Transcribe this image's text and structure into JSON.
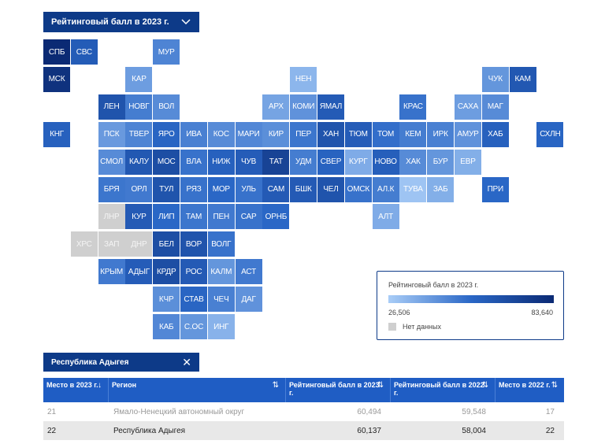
{
  "selector": {
    "label": "Рейтинговый балл в 2023 г.",
    "icon": "chevron-down-icon"
  },
  "map": {
    "tiles": [
      {
        "id": "СПБ",
        "col": 0,
        "row": 0,
        "value": 83.6
      },
      {
        "id": "СВС",
        "col": 1,
        "row": 0,
        "value": 60.2
      },
      {
        "id": "МУР",
        "col": 4,
        "row": 0,
        "value": 47.0
      },
      {
        "id": "МСК",
        "col": 0,
        "row": 1,
        "value": 80.0
      },
      {
        "id": "КАР",
        "col": 3,
        "row": 1,
        "value": 40.0
      },
      {
        "id": "НЕН",
        "col": 9,
        "row": 1,
        "value": 33.0
      },
      {
        "id": "ЧУК",
        "col": 16,
        "row": 1,
        "value": 42.0
      },
      {
        "id": "КАМ",
        "col": 17,
        "row": 1,
        "value": 62.0
      },
      {
        "id": "ЛЕН",
        "col": 2,
        "row": 2,
        "value": 64.0
      },
      {
        "id": "НОВГ",
        "col": 3,
        "row": 2,
        "value": 49.0
      },
      {
        "id": "ВОЛ",
        "col": 4,
        "row": 2,
        "value": 45.0
      },
      {
        "id": "АРХ",
        "col": 8,
        "row": 2,
        "value": 38.0
      },
      {
        "id": "КОМИ",
        "col": 9,
        "row": 2,
        "value": 43.0
      },
      {
        "id": "ЯМАЛ",
        "col": 10,
        "row": 2,
        "value": 60.5
      },
      {
        "id": "КРАС",
        "col": 13,
        "row": 2,
        "value": 52.0
      },
      {
        "id": "САХА",
        "col": 15,
        "row": 2,
        "value": 40.0
      },
      {
        "id": "МАГ",
        "col": 16,
        "row": 2,
        "value": 45.0
      },
      {
        "id": "КНГ",
        "col": 0,
        "row": 3,
        "value": 58.0
      },
      {
        "id": "ПСК",
        "col": 2,
        "row": 3,
        "value": 41.0
      },
      {
        "id": "ТВЕР",
        "col": 3,
        "row": 3,
        "value": 47.0
      },
      {
        "id": "ЯРО",
        "col": 4,
        "row": 3,
        "value": 56.0
      },
      {
        "id": "ИВА",
        "col": 5,
        "row": 3,
        "value": 48.0
      },
      {
        "id": "КОС",
        "col": 6,
        "row": 3,
        "value": 45.0
      },
      {
        "id": "МАРИ",
        "col": 7,
        "row": 3,
        "value": 46.0
      },
      {
        "id": "КИР",
        "col": 8,
        "row": 3,
        "value": 44.0
      },
      {
        "id": "ПЕР",
        "col": 9,
        "row": 3,
        "value": 51.0
      },
      {
        "id": "ХАН",
        "col": 10,
        "row": 3,
        "value": 64.0
      },
      {
        "id": "ТЮМ",
        "col": 11,
        "row": 3,
        "value": 60.0
      },
      {
        "id": "ТОМ",
        "col": 12,
        "row": 3,
        "value": 53.0
      },
      {
        "id": "КЕМ",
        "col": 13,
        "row": 3,
        "value": 49.0
      },
      {
        "id": "ИРК",
        "col": 14,
        "row": 3,
        "value": 48.0
      },
      {
        "id": "АМУР",
        "col": 15,
        "row": 3,
        "value": 43.0
      },
      {
        "id": "ХАБ",
        "col": 16,
        "row": 3,
        "value": 58.0
      },
      {
        "id": "СХЛН",
        "col": 18,
        "row": 3,
        "value": 56.0
      },
      {
        "id": "СМОЛ",
        "col": 2,
        "row": 4,
        "value": 45.0
      },
      {
        "id": "КАЛУ",
        "col": 3,
        "row": 4,
        "value": 62.0
      },
      {
        "id": "МОС",
        "col": 4,
        "row": 4,
        "value": 67.0
      },
      {
        "id": "ВЛА",
        "col": 5,
        "row": 4,
        "value": 52.0
      },
      {
        "id": "НИЖ",
        "col": 6,
        "row": 4,
        "value": 58.0
      },
      {
        "id": "ЧУВ",
        "col": 7,
        "row": 4,
        "value": 60.0
      },
      {
        "id": "ТАТ",
        "col": 8,
        "row": 4,
        "value": 72.0
      },
      {
        "id": "УДМ",
        "col": 9,
        "row": 4,
        "value": 49.0
      },
      {
        "id": "СВЕР",
        "col": 10,
        "row": 4,
        "value": 57.0
      },
      {
        "id": "КУРГ",
        "col": 11,
        "row": 4,
        "value": 36.0
      },
      {
        "id": "НОВО",
        "col": 12,
        "row": 4,
        "value": 59.0
      },
      {
        "id": "ХАК",
        "col": 13,
        "row": 4,
        "value": 45.0
      },
      {
        "id": "БУР",
        "col": 14,
        "row": 4,
        "value": 42.0
      },
      {
        "id": "ЕВР",
        "col": 15,
        "row": 4,
        "value": 35.0
      },
      {
        "id": "БРЯ",
        "col": 2,
        "row": 5,
        "value": 51.0
      },
      {
        "id": "ОРЛ",
        "col": 3,
        "row": 5,
        "value": 50.0
      },
      {
        "id": "ТУЛ",
        "col": 4,
        "row": 5,
        "value": 64.0
      },
      {
        "id": "РЯЗ",
        "col": 5,
        "row": 5,
        "value": 52.0
      },
      {
        "id": "МОР",
        "col": 6,
        "row": 5,
        "value": 55.0
      },
      {
        "id": "УЛЬ",
        "col": 7,
        "row": 5,
        "value": 52.0
      },
      {
        "id": "САМ",
        "col": 8,
        "row": 5,
        "value": 61.0
      },
      {
        "id": "БШК",
        "col": 9,
        "row": 5,
        "value": 61.0
      },
      {
        "id": "ЧЕЛ",
        "col": 10,
        "row": 5,
        "value": 64.0
      },
      {
        "id": "ОМСК",
        "col": 11,
        "row": 5,
        "value": 52.0
      },
      {
        "id": "АЛ.К",
        "col": 12,
        "row": 5,
        "value": 49.0
      },
      {
        "id": "ТУВА",
        "col": 13,
        "row": 5,
        "value": 29.0
      },
      {
        "id": "ЗАБ",
        "col": 14,
        "row": 5,
        "value": 35.0
      },
      {
        "id": "ПРИ",
        "col": 16,
        "row": 5,
        "value": 55.0
      },
      {
        "id": "ЛНР",
        "col": 2,
        "row": 6,
        "value": null
      },
      {
        "id": "КУР",
        "col": 3,
        "row": 6,
        "value": 61.0
      },
      {
        "id": "ЛИП",
        "col": 4,
        "row": 6,
        "value": 55.0
      },
      {
        "id": "ТАМ",
        "col": 5,
        "row": 6,
        "value": 51.0
      },
      {
        "id": "ПЕН",
        "col": 6,
        "row": 6,
        "value": 50.0
      },
      {
        "id": "САР",
        "col": 7,
        "row": 6,
        "value": 52.0
      },
      {
        "id": "ОРНБ",
        "col": 8,
        "row": 6,
        "value": 55.0
      },
      {
        "id": "АЛТ",
        "col": 12,
        "row": 6,
        "value": 36.0
      },
      {
        "id": "ХРС",
        "col": 1,
        "row": 7,
        "value": null
      },
      {
        "id": "ЗАП",
        "col": 2,
        "row": 7,
        "value": null
      },
      {
        "id": "ДНР",
        "col": 3,
        "row": 7,
        "value": null
      },
      {
        "id": "БЕЛ",
        "col": 4,
        "row": 7,
        "value": 67.0
      },
      {
        "id": "ВОР",
        "col": 5,
        "row": 7,
        "value": 64.0
      },
      {
        "id": "ВОЛГ",
        "col": 6,
        "row": 7,
        "value": 52.0
      },
      {
        "id": "КРЫМ",
        "col": 2,
        "row": 8,
        "value": 50.0
      },
      {
        "id": "АДЫГ",
        "col": 3,
        "row": 8,
        "value": 60.1
      },
      {
        "id": "КРДР",
        "col": 4,
        "row": 8,
        "value": 67.0
      },
      {
        "id": "РОС",
        "col": 5,
        "row": 8,
        "value": 61.0
      },
      {
        "id": "КАЛМ",
        "col": 6,
        "row": 8,
        "value": 42.0
      },
      {
        "id": "АСТ",
        "col": 7,
        "row": 8,
        "value": 50.0
      },
      {
        "id": "КЧР",
        "col": 4,
        "row": 9,
        "value": 44.0
      },
      {
        "id": "СТАВ",
        "col": 5,
        "row": 9,
        "value": 56.0
      },
      {
        "id": "ЧЕЧ",
        "col": 6,
        "row": 9,
        "value": 48.0
      },
      {
        "id": "ДАГ",
        "col": 7,
        "row": 9,
        "value": 43.0
      },
      {
        "id": "КАБ",
        "col": 4,
        "row": 10,
        "value": 46.0
      },
      {
        "id": "С.ОС",
        "col": 5,
        "row": 10,
        "value": 42.0
      },
      {
        "id": "ИНГ",
        "col": 6,
        "row": 10,
        "value": 34.0
      }
    ]
  },
  "legend": {
    "title": "Рейтинговый балл в 2023 г.",
    "min_label": "26,506",
    "max_label": "83,640",
    "min": 26.506,
    "max": 83.64,
    "no_data_label": "Нет данных",
    "colors": {
      "low": "#a9cdf7",
      "mid": "#2a67c6",
      "high": "#0b2a74",
      "no_data": "#cfcfcf"
    }
  },
  "filter": {
    "label": "Республика Адыгея",
    "close_icon": "close-icon"
  },
  "table": {
    "headers": [
      {
        "label": "Место в 2023 г.",
        "sort": "↓"
      },
      {
        "label": "Регион",
        "sort": "⇅"
      },
      {
        "label": "Рейтинговый балл в 2023 г.",
        "sort": "⇅"
      },
      {
        "label": "Рейтинговый балл в 2022 г.",
        "sort": "⇅"
      },
      {
        "label": "Место в 2022 г.",
        "sort": "⇅"
      }
    ],
    "rows": [
      {
        "rank2023": "21",
        "region": "Ямало-Ненецкий автономный округ",
        "score2023": "60,494",
        "score2022": "59,548",
        "rank2022": "17"
      },
      {
        "rank2023": "22",
        "region": "Республика Адыгея",
        "score2023": "60,137",
        "score2022": "58,004",
        "rank2022": "22"
      }
    ]
  }
}
